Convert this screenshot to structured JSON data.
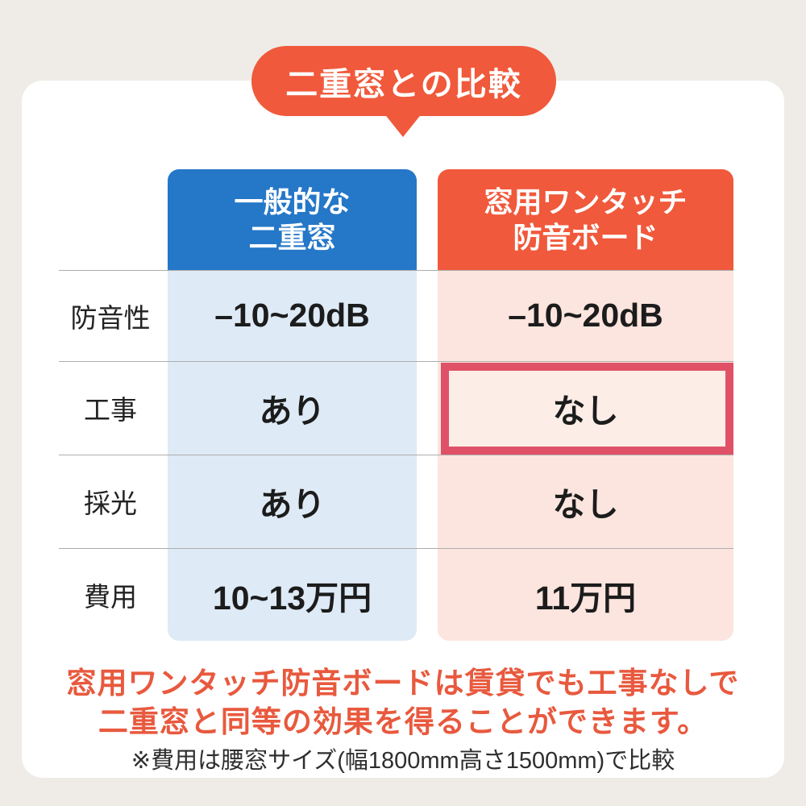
{
  "chart_data": {
    "type": "table",
    "title": "二重窓との比較",
    "column_headers": [
      {
        "line1": "一般的な",
        "line2": "二重窓"
      },
      {
        "line1": "窓用ワンタッチ",
        "line2": "防音ボード"
      }
    ],
    "rows": [
      {
        "label": "防音性",
        "double_window": "–10~20dB",
        "board": "–10~20dB",
        "highlighted": false
      },
      {
        "label": "工事",
        "double_window": "あり",
        "board": "なし",
        "highlighted": true
      },
      {
        "label": "採光",
        "double_window": "あり",
        "board": "なし",
        "highlighted": false
      },
      {
        "label": "費用",
        "double_window": "10~13万円",
        "board": "11万円",
        "highlighted": false
      }
    ],
    "footer_message_line1": "窓用ワンタッチ防音ボードは賃貸でも工事なしで",
    "footer_message_line2": "二重窓と同等の効果を得ることができます。",
    "footnote": "※費用は腰窓サイズ(幅1800mm高さ1500mm)で比較",
    "legend_position": "none",
    "grid": "horizontal-lines"
  },
  "colors": {
    "accent_orange": "#F0593B",
    "header_blue": "#2577C8",
    "body_blue": "#DEEAF5",
    "body_pink": "#FBE5DE",
    "highlight_border": "#E05168",
    "message_orange": "#E8593E",
    "page_background": "#EFECE7",
    "divider_gray": "#ADADAD"
  }
}
